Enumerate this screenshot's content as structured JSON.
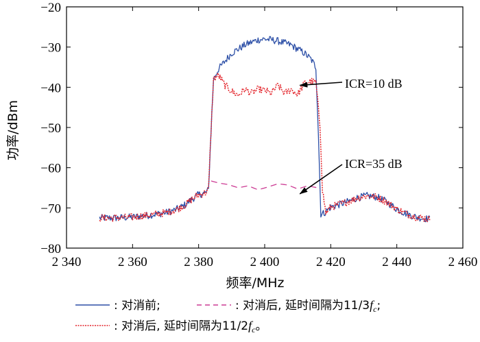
{
  "chart_data": {
    "type": "line",
    "xlabel": "频率/MHz",
    "ylabel": "功率/dBm",
    "xlim": [
      2340,
      2460
    ],
    "ylim": [
      -80,
      -20
    ],
    "xticks": [
      2340,
      2360,
      2380,
      2400,
      2420,
      2440,
      2460
    ],
    "xtick_labels": [
      "2 340",
      "2 360",
      "2 380",
      "2 400",
      "2 420",
      "2 440",
      "2 460"
    ],
    "yticks": [
      -80,
      -70,
      -60,
      -50,
      -40,
      -30,
      -20
    ],
    "ytick_labels": [
      "-80",
      "-70",
      "-60",
      "-50",
      "-40",
      "-30",
      "-20"
    ],
    "grid": false,
    "series": [
      {
        "name": "对消前",
        "color": "#2b4ea6",
        "style": "solid",
        "x": [
          2350,
          2355,
          2360,
          2365,
          2370,
          2373,
          2376,
          2378,
          2380,
          2382,
          2383,
          2383.8,
          2384.5,
          2386,
          2388,
          2390,
          2392,
          2394,
          2396,
          2398,
          2400,
          2402,
          2404,
          2406,
          2408,
          2410,
          2412,
          2414,
          2415.5,
          2416.2,
          2417,
          2418,
          2420,
          2422,
          2425,
          2428,
          2431,
          2434,
          2437,
          2440,
          2443,
          2446,
          2450
        ],
        "y": [
          -72.5,
          -72.5,
          -72.3,
          -71.8,
          -71.2,
          -70.5,
          -69.2,
          -67.8,
          -66.7,
          -66.3,
          -65.5,
          -50,
          -38,
          -35.5,
          -33.5,
          -31.5,
          -30.5,
          -29.5,
          -28.8,
          -28.2,
          -28,
          -28.2,
          -28.5,
          -29,
          -29.5,
          -30.5,
          -31.5,
          -33,
          -35,
          -50,
          -71.5,
          -71.3,
          -69.8,
          -69.3,
          -68.5,
          -67.5,
          -67,
          -67.3,
          -68.5,
          -70.3,
          -71.5,
          -72.3,
          -72.8
        ]
      },
      {
        "name": "对消后, 延时间隔为11/3f_c",
        "color": "#cc3a93",
        "style": "dashed",
        "x": [
          2383.8,
          2386,
          2389,
          2392,
          2395,
          2398,
          2401,
          2404,
          2407,
          2410,
          2413,
          2416,
          2417
        ],
        "y": [
          -63.3,
          -63.8,
          -64.2,
          -65,
          -64.5,
          -65.5,
          -64.8,
          -64,
          -64.3,
          -65.3,
          -64.5,
          -65,
          -65.5
        ]
      },
      {
        "name": "对消后, 延时间隔为11/2f_c",
        "color": "#e3242b",
        "style": "dotted",
        "x": [
          2350,
          2355,
          2360,
          2365,
          2370,
          2373,
          2376,
          2378,
          2380,
          2382,
          2383,
          2383.8,
          2384.5,
          2386,
          2388,
          2390,
          2392,
          2394,
          2396,
          2398,
          2400,
          2402,
          2404,
          2406,
          2408,
          2410,
          2412,
          2414,
          2415.5,
          2416.8,
          2417.5,
          2418.5,
          2420,
          2422,
          2425,
          2428,
          2431,
          2434,
          2437,
          2440,
          2443,
          2446,
          2450
        ],
        "y": [
          -72.5,
          -72.5,
          -72.3,
          -71.8,
          -71.2,
          -70.5,
          -69.2,
          -67.8,
          -66.7,
          -66.3,
          -65.5,
          -50,
          -38,
          -37,
          -39.5,
          -41,
          -42,
          -40.5,
          -41.5,
          -40.5,
          -40.8,
          -41.5,
          -39.5,
          -41.5,
          -40.5,
          -41.8,
          -39,
          -38.5,
          -38.8,
          -50,
          -65.5,
          -71.3,
          -69.8,
          -69.3,
          -68.5,
          -67.5,
          -67,
          -67.3,
          -68.5,
          -70.3,
          -71.5,
          -72.3,
          -72.8
        ]
      }
    ],
    "annotations": [
      {
        "text": "ICR=10 dB",
        "x": 2409,
        "y": -39.5
      },
      {
        "text": "ICR=35 dB",
        "x": 2409,
        "y": -66.5
      }
    ],
    "legend": {
      "placement": "bottom",
      "items": [
        {
          "text": ": 对消前;",
          "color": "#2b4ea6",
          "style": "solid"
        },
        {
          "text": ": 对消后, 延时间隔为11/3",
          "suffix_main": "f",
          "suffix_sub": "c",
          "suffix_end": ";",
          "color": "#cc3a93",
          "style": "dashed"
        },
        {
          "text": ": 对消后, 延时间隔为11/2",
          "suffix_main": "f",
          "suffix_sub": "c",
          "suffix_end": "。",
          "color": "#e3242b",
          "style": "dotted"
        }
      ]
    }
  }
}
